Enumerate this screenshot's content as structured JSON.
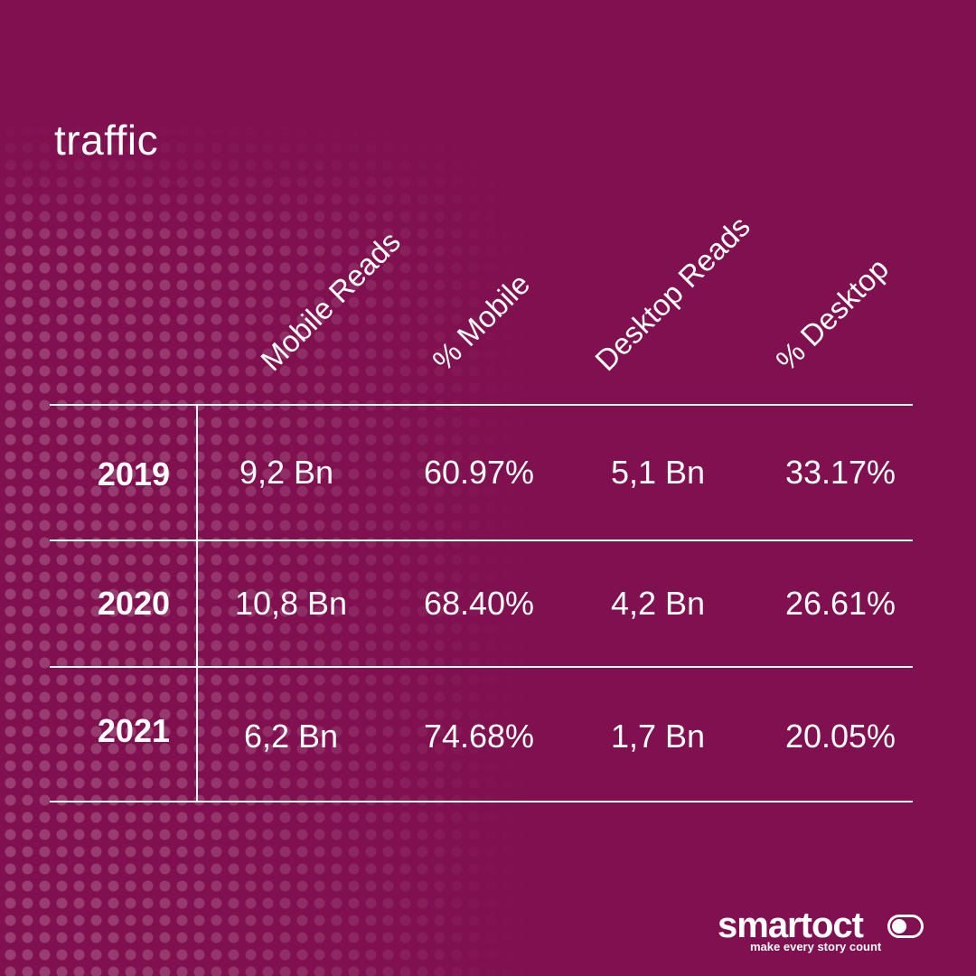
{
  "title": "traffic",
  "columns": [
    "Mobile Reads",
    "% Mobile",
    "Desktop Reads",
    "% Desktop"
  ],
  "rows": [
    {
      "year": "2019",
      "values": [
        "9,2 Bn",
        "60.97%",
        "5,1 Bn",
        "33.17%"
      ]
    },
    {
      "year": "2020",
      "values": [
        "10,8 Bn",
        "68.40%",
        "4,2 Bn",
        "26.61%"
      ]
    },
    {
      "year": "2021",
      "values": [
        "6,2 Bn",
        "74.68%",
        "1,7 Bn",
        "20.05%"
      ]
    }
  ],
  "logo": {
    "wordmark": "smartoct",
    "tagline": "make every story count"
  },
  "colors": {
    "background": "#801050",
    "text": "#ffffff",
    "dots": "rgba(255,255,255,0.20)"
  }
}
